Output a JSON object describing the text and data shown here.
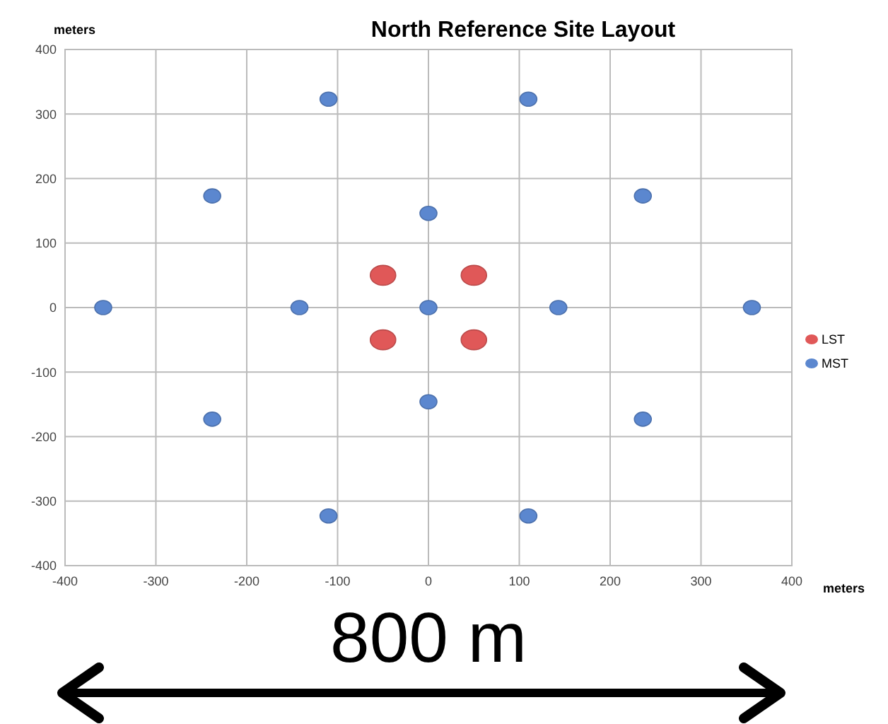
{
  "chart_data": {
    "type": "scatter",
    "title": "North Reference Site Layout",
    "xlabel": "meters",
    "ylabel": "meters",
    "annotations": [
      "800 m"
    ],
    "xlim": [
      -400,
      400
    ],
    "ylim": [
      -400,
      400
    ],
    "xticks": [
      -400,
      -300,
      -200,
      -100,
      0,
      100,
      200,
      300,
      400
    ],
    "yticks": [
      -400,
      -300,
      -200,
      -100,
      0,
      100,
      200,
      300,
      400
    ],
    "grid": true,
    "legend": "right",
    "marker": "circle",
    "series": [
      {
        "name": "LST",
        "color": "#e05858",
        "x": [
          -50,
          50,
          -50,
          50
        ],
        "values": [
          50,
          50,
          -50,
          -50
        ]
      },
      {
        "name": "MST",
        "color": "#5b87cf",
        "x": [
          -110,
          110,
          -238,
          236,
          0,
          -358,
          -142,
          0,
          143,
          356,
          0,
          -238,
          236,
          -110,
          110
        ],
        "values": [
          323,
          323,
          173,
          173,
          146,
          0,
          0,
          0,
          0,
          0,
          -146,
          -173,
          -173,
          -323,
          -323
        ]
      }
    ]
  }
}
